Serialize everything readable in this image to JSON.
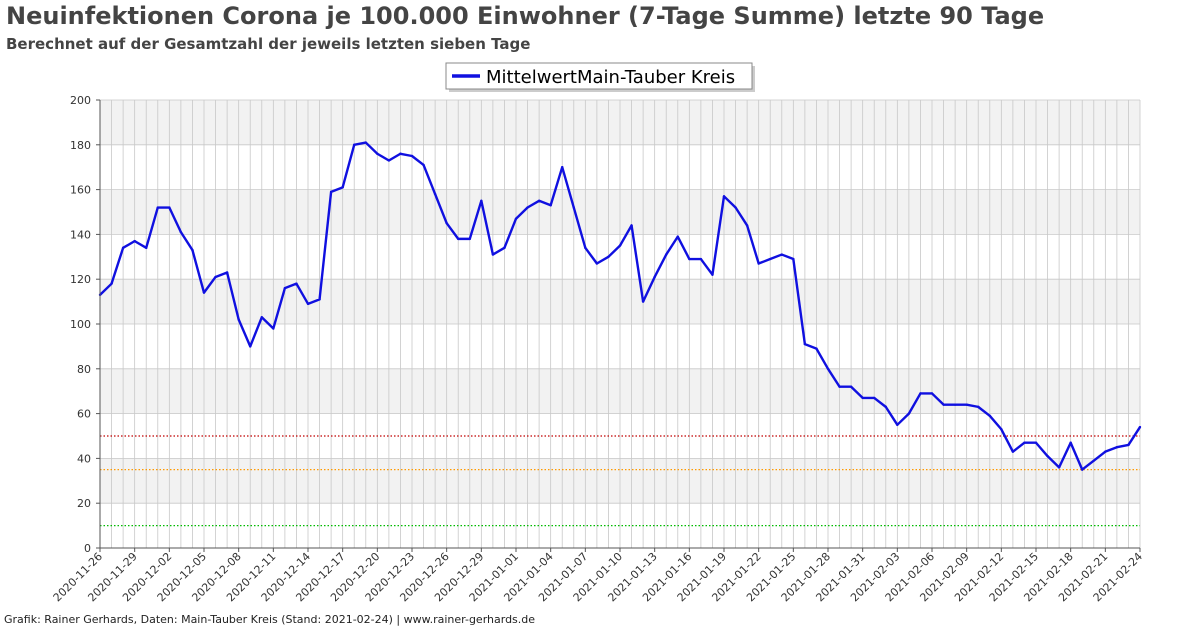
{
  "title": "Neuinfektionen Corona je 100.000 Einwohner (7-Tage Summe) letzte 90 Tage",
  "subtitle": "Berechnet auf der Gesamtzahl der jeweils letzten sieben Tage",
  "footer": "Grafik: Rainer Gerhards, Daten: Main-Tauber Kreis (Stand: 2021-02-24) | www.rainer-gerhards.de",
  "chart_data": {
    "type": "line",
    "title": "Neuinfektionen Corona je 100.000 Einwohner (7-Tage Summe) letzte 90 Tage",
    "subtitle": "Berechnet auf der Gesamtzahl der jeweils letzten sieben Tage",
    "xlabel": "",
    "ylabel": "",
    "x_start": "2020-11-26",
    "x_end": "2021-02-24",
    "x_tick_labels": [
      "2020-11-26",
      "2020-11-29",
      "2020-12-02",
      "2020-12-05",
      "2020-12-08",
      "2020-12-11",
      "2020-12-14",
      "2020-12-17",
      "2020-12-20",
      "2020-12-23",
      "2020-12-26",
      "2020-12-29",
      "2021-01-01",
      "2021-01-04",
      "2021-01-07",
      "2021-01-10",
      "2021-01-13",
      "2021-01-16",
      "2021-01-19",
      "2021-01-22",
      "2021-01-25",
      "2021-01-28",
      "2021-01-31",
      "2021-02-03",
      "2021-02-06",
      "2021-02-09",
      "2021-02-12",
      "2021-02-15",
      "2021-02-18",
      "2021-02-21",
      "2021-02-24"
    ],
    "y_ticks": [
      0,
      20,
      40,
      60,
      80,
      100,
      120,
      140,
      160,
      180,
      200
    ],
    "ylim": [
      0,
      200
    ],
    "grid": true,
    "legend": {
      "position": "top-center",
      "entries": [
        "MittelwertMain-Tauber Kreis"
      ]
    },
    "series": [
      {
        "name": "MittelwertMain-Tauber Kreis",
        "color": "#1010e0",
        "values": [
          113,
          118,
          134,
          137,
          134,
          152,
          152,
          141,
          133,
          114,
          121,
          123,
          102,
          90,
          103,
          98,
          116,
          118,
          109,
          111,
          159,
          161,
          180,
          181,
          176,
          173,
          176,
          175,
          171,
          158,
          145,
          138,
          138,
          155,
          131,
          134,
          147,
          152,
          155,
          153,
          170,
          152,
          134,
          127,
          130,
          135,
          144,
          110,
          121,
          131,
          139,
          129,
          129,
          122,
          157,
          152,
          144,
          127,
          129,
          131,
          129,
          91,
          89,
          80,
          72,
          72,
          67,
          67,
          63,
          55,
          60,
          69,
          69,
          64,
          64,
          64,
          63,
          59,
          53,
          43,
          47,
          47,
          41,
          36,
          47,
          35,
          39,
          43,
          45,
          46,
          54
        ]
      }
    ],
    "reference_lines": [
      {
        "value": 50,
        "color": "#c00000",
        "style": "dotted"
      },
      {
        "value": 35,
        "color": "#ff9900",
        "style": "dotted"
      },
      {
        "value": 10,
        "color": "#00bb00",
        "style": "dotted"
      }
    ],
    "band_colors": [
      "#f2f2f2",
      "#ffffff"
    ],
    "grid_color": "#c8c8c8"
  }
}
